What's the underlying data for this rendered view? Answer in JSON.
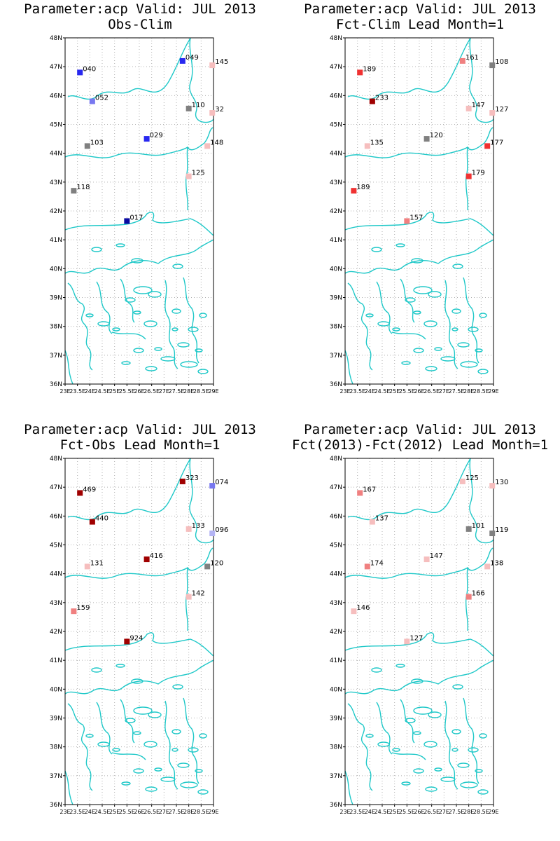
{
  "axes": {
    "lat_ticks": [
      "48N",
      "47N",
      "46N",
      "45N",
      "44N",
      "43N",
      "42N",
      "41N",
      "40N",
      "39N",
      "38N",
      "37N",
      "36N"
    ],
    "lon_ticks": [
      "23E",
      "23.5E",
      "24E",
      "24.5E",
      "25E",
      "25.5E",
      "26E",
      "26.5E",
      "27E",
      "27.5E",
      "28E",
      "28.5E",
      "29E"
    ],
    "lat_range": [
      36,
      48
    ],
    "lon_range": [
      23,
      29
    ],
    "grid": "dotted"
  },
  "colors": {
    "coast": "#1ec8c8",
    "darkred": "#a00000",
    "red": "#f03232",
    "salmon": "#f08080",
    "pink": "#f6bebe",
    "gray": "#808080",
    "navy": "#0a0aa0",
    "blue": "#2828f0",
    "lightblue": "#7878f0",
    "lavender": "#b4b4f4"
  },
  "panels": [
    {
      "title_line1": "Parameter:acp Valid: JUL 2013",
      "title_line2": "Obs-Clim",
      "chart_data": {
        "type": "scatter",
        "points": [
          {
            "lon": 23.6,
            "lat": 46.8,
            "label": "040",
            "color": "blue"
          },
          {
            "lon": 24.1,
            "lat": 45.8,
            "label": "052",
            "color": "lightblue"
          },
          {
            "lon": 27.75,
            "lat": 47.2,
            "label": "049",
            "color": "blue"
          },
          {
            "lon": 28.95,
            "lat": 47.05,
            "label": "145",
            "color": "pink"
          },
          {
            "lon": 28.0,
            "lat": 45.55,
            "label": "110",
            "color": "gray"
          },
          {
            "lon": 28.95,
            "lat": 45.4,
            "label": "32",
            "color": "pink"
          },
          {
            "lon": 23.9,
            "lat": 44.25,
            "label": "103",
            "color": "gray"
          },
          {
            "lon": 26.3,
            "lat": 44.5,
            "label": "029",
            "color": "blue"
          },
          {
            "lon": 28.75,
            "lat": 44.25,
            "label": "148",
            "color": "pink"
          },
          {
            "lon": 28.0,
            "lat": 43.2,
            "label": "125",
            "color": "pink"
          },
          {
            "lon": 23.35,
            "lat": 42.7,
            "label": "118",
            "color": "gray"
          },
          {
            "lon": 25.5,
            "lat": 41.65,
            "label": "017",
            "color": "navy"
          }
        ]
      }
    },
    {
      "title_line1": "Parameter:acp Valid: JUL 2013",
      "title_line2": "Fct-Clim Lead Month=1",
      "chart_data": {
        "type": "scatter",
        "points": [
          {
            "lon": 23.6,
            "lat": 46.8,
            "label": "189",
            "color": "red"
          },
          {
            "lon": 24.1,
            "lat": 45.8,
            "label": "233",
            "color": "darkred"
          },
          {
            "lon": 27.75,
            "lat": 47.2,
            "label": "161",
            "color": "salmon"
          },
          {
            "lon": 28.95,
            "lat": 47.05,
            "label": "108",
            "color": "gray"
          },
          {
            "lon": 28.0,
            "lat": 45.55,
            "label": "147",
            "color": "pink"
          },
          {
            "lon": 28.95,
            "lat": 45.4,
            "label": "127",
            "color": "pink"
          },
          {
            "lon": 23.9,
            "lat": 44.25,
            "label": "135",
            "color": "pink"
          },
          {
            "lon": 26.3,
            "lat": 44.5,
            "label": "120",
            "color": "gray"
          },
          {
            "lon": 28.75,
            "lat": 44.25,
            "label": "177",
            "color": "red"
          },
          {
            "lon": 28.0,
            "lat": 43.2,
            "label": "179",
            "color": "red"
          },
          {
            "lon": 23.35,
            "lat": 42.7,
            "label": "189",
            "color": "red"
          },
          {
            "lon": 25.5,
            "lat": 41.65,
            "label": "157",
            "color": "salmon"
          }
        ]
      }
    },
    {
      "title_line1": "Parameter:acp Valid: JUL 2013",
      "title_line2": "Fct-Obs Lead Month=1",
      "chart_data": {
        "type": "scatter",
        "points": [
          {
            "lon": 23.6,
            "lat": 46.8,
            "label": "469",
            "color": "darkred"
          },
          {
            "lon": 24.1,
            "lat": 45.8,
            "label": "440",
            "color": "darkred"
          },
          {
            "lon": 27.75,
            "lat": 47.2,
            "label": "323",
            "color": "darkred"
          },
          {
            "lon": 28.95,
            "lat": 47.05,
            "label": "074",
            "color": "lightblue"
          },
          {
            "lon": 28.0,
            "lat": 45.55,
            "label": "133",
            "color": "pink"
          },
          {
            "lon": 28.95,
            "lat": 45.4,
            "label": "096",
            "color": "lavender"
          },
          {
            "lon": 23.9,
            "lat": 44.25,
            "label": "131",
            "color": "pink"
          },
          {
            "lon": 26.3,
            "lat": 44.5,
            "label": "416",
            "color": "darkred"
          },
          {
            "lon": 28.75,
            "lat": 44.25,
            "label": "120",
            "color": "gray"
          },
          {
            "lon": 28.0,
            "lat": 43.2,
            "label": "142",
            "color": "pink"
          },
          {
            "lon": 23.35,
            "lat": 42.7,
            "label": "159",
            "color": "salmon"
          },
          {
            "lon": 25.5,
            "lat": 41.65,
            "label": "924",
            "color": "darkred"
          }
        ]
      }
    },
    {
      "title_line1": "Parameter:acp Valid: JUL 2013",
      "title_line2": "Fct(2013)-Fct(2012) Lead Month=1",
      "chart_data": {
        "type": "scatter",
        "points": [
          {
            "lon": 23.6,
            "lat": 46.8,
            "label": "167",
            "color": "salmon"
          },
          {
            "lon": 24.1,
            "lat": 45.8,
            "label": "137",
            "color": "pink"
          },
          {
            "lon": 27.75,
            "lat": 47.2,
            "label": "125",
            "color": "pink"
          },
          {
            "lon": 28.95,
            "lat": 47.05,
            "label": "130",
            "color": "pink"
          },
          {
            "lon": 28.0,
            "lat": 45.55,
            "label": "101",
            "color": "gray"
          },
          {
            "lon": 28.95,
            "lat": 45.4,
            "label": "119",
            "color": "gray"
          },
          {
            "lon": 23.9,
            "lat": 44.25,
            "label": "174",
            "color": "salmon"
          },
          {
            "lon": 26.3,
            "lat": 44.5,
            "label": "147",
            "color": "pink"
          },
          {
            "lon": 28.75,
            "lat": 44.25,
            "label": "138",
            "color": "pink"
          },
          {
            "lon": 28.0,
            "lat": 43.2,
            "label": "166",
            "color": "salmon"
          },
          {
            "lon": 23.35,
            "lat": 42.7,
            "label": "146",
            "color": "pink"
          },
          {
            "lon": 25.5,
            "lat": 41.65,
            "label": "127",
            "color": "pink"
          }
        ]
      }
    }
  ]
}
